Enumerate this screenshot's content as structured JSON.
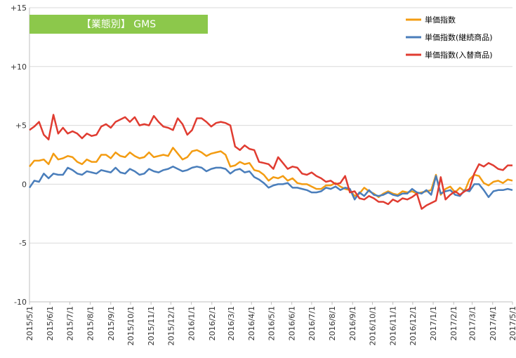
{
  "chart_data": {
    "type": "line",
    "title": "【業態別】 GMS",
    "title_box_color": "#8cc84b",
    "ylim": [
      -10,
      15
    ],
    "yticks": [
      {
        "value": 15,
        "label": "+15"
      },
      {
        "value": 10,
        "label": "+10"
      },
      {
        "value": 5,
        "label": "+5"
      },
      {
        "value": 0,
        "label": "0"
      },
      {
        "value": -5,
        "label": "-5"
      },
      {
        "value": -10,
        "label": "-10"
      }
    ],
    "grid": true,
    "legend_position": "top-right",
    "x_start": "2015-05-01",
    "x_end": "2017-05-01",
    "x_tick_labels": [
      "2015/5/1",
      "2015/6/1",
      "2015/7/1",
      "2015/8/1",
      "2015/9/1",
      "2015/10/1",
      "2015/11/1",
      "2015/12/1",
      "2016/1/1",
      "2016/2/1",
      "2016/3/1",
      "2016/4/1",
      "2016/5/1",
      "2016/6/1",
      "2016/7/1",
      "2016/8/1",
      "2016/9/1",
      "2016/10/1",
      "2016/11/1",
      "2016/12/1",
      "2017/1/1",
      "2017/2/1",
      "2017/3/1",
      "2017/4/1",
      "2017/5/1"
    ],
    "series": [
      {
        "name": "単価指数",
        "color": "#f39c12",
        "values": [
          1.5,
          2.0,
          2.0,
          2.1,
          1.7,
          2.6,
          2.1,
          2.2,
          2.4,
          2.3,
          1.9,
          1.7,
          2.1,
          1.9,
          1.9,
          2.5,
          2.5,
          2.2,
          2.7,
          2.4,
          2.3,
          2.7,
          2.4,
          2.2,
          2.3,
          2.7,
          2.3,
          2.4,
          2.5,
          2.4,
          3.1,
          2.6,
          2.1,
          2.3,
          2.8,
          2.9,
          2.7,
          2.4,
          2.6,
          2.7,
          2.8,
          2.5,
          1.5,
          1.6,
          1.9,
          1.7,
          1.8,
          1.2,
          1.1,
          0.8,
          0.3,
          0.6,
          0.5,
          0.7,
          0.3,
          0.5,
          0.1,
          0.0,
          0.0,
          -0.2,
          -0.4,
          -0.4,
          -0.1,
          -0.1,
          0.1,
          -0.2,
          -0.4,
          -0.5,
          -1.0,
          -0.8,
          -0.3,
          -0.6,
          -0.8,
          -1.1,
          -0.8,
          -0.6,
          -0.8,
          -0.9,
          -0.6,
          -0.7,
          -0.6,
          -0.8,
          -0.7,
          -0.6,
          -0.5,
          0.8,
          -0.9,
          -0.4,
          -0.2,
          -0.7,
          -0.3,
          -0.6,
          0.4,
          0.8,
          0.7,
          0.1,
          -0.1,
          0.2,
          0.3,
          0.1,
          0.4,
          0.3
        ]
      },
      {
        "name": "単価指数(継続商品)",
        "color": "#4a7ebb",
        "values": [
          -0.3,
          0.3,
          0.2,
          0.9,
          0.5,
          0.9,
          0.8,
          0.8,
          1.4,
          1.2,
          0.9,
          0.8,
          1.1,
          1.0,
          0.9,
          1.2,
          1.1,
          1.0,
          1.4,
          1.0,
          0.9,
          1.3,
          1.1,
          0.8,
          0.9,
          1.3,
          1.1,
          1.0,
          1.2,
          1.3,
          1.5,
          1.3,
          1.1,
          1.2,
          1.4,
          1.5,
          1.4,
          1.1,
          1.3,
          1.4,
          1.4,
          1.3,
          0.9,
          1.2,
          1.3,
          1.0,
          1.1,
          0.6,
          0.4,
          0.1,
          -0.3,
          -0.1,
          0.0,
          0.0,
          0.1,
          -0.3,
          -0.3,
          -0.4,
          -0.5,
          -0.7,
          -0.7,
          -0.6,
          -0.3,
          -0.4,
          -0.2,
          -0.5,
          -0.3,
          -0.4,
          -1.3,
          -0.7,
          -1.0,
          -0.5,
          -0.9,
          -1.0,
          -0.9,
          -0.7,
          -0.9,
          -1.0,
          -0.8,
          -0.8,
          -0.4,
          -0.7,
          -0.8,
          -0.5,
          -0.9,
          0.7,
          -0.8,
          -0.6,
          -0.5,
          -0.9,
          -1.0,
          -0.5,
          -0.6,
          0.0,
          0.0,
          -0.5,
          -1.1,
          -0.6,
          -0.5,
          -0.5,
          -0.4,
          -0.5
        ]
      },
      {
        "name": "単価指数(入替商品)",
        "color": "#e03c31",
        "values": [
          4.6,
          4.9,
          5.3,
          4.2,
          3.8,
          5.9,
          4.3,
          4.8,
          4.3,
          4.5,
          4.3,
          3.9,
          4.3,
          4.1,
          4.2,
          4.9,
          5.1,
          4.8,
          5.3,
          5.5,
          5.7,
          5.3,
          5.7,
          5.0,
          5.1,
          5.0,
          5.8,
          5.3,
          4.9,
          4.8,
          4.6,
          5.6,
          5.1,
          4.2,
          4.6,
          5.6,
          5.6,
          5.3,
          4.9,
          5.2,
          5.3,
          5.2,
          5.0,
          3.2,
          2.9,
          3.3,
          3.0,
          2.9,
          1.9,
          1.8,
          1.7,
          1.3,
          2.3,
          1.8,
          1.3,
          1.5,
          1.4,
          0.9,
          0.8,
          1.0,
          0.7,
          0.5,
          0.2,
          0.3,
          0.0,
          0.1,
          0.7,
          -0.7,
          -0.6,
          -1.2,
          -1.3,
          -1.0,
          -1.2,
          -1.5,
          -1.5,
          -1.7,
          -1.3,
          -1.5,
          -1.2,
          -1.3,
          -1.1,
          -0.8,
          -2.1,
          -1.8,
          -1.6,
          -1.4,
          0.6,
          -1.3,
          -0.9,
          -0.6,
          -0.9,
          -0.6,
          -0.4,
          0.9,
          1.7,
          1.5,
          1.8,
          1.6,
          1.3,
          1.2,
          1.6,
          1.6
        ]
      }
    ]
  }
}
